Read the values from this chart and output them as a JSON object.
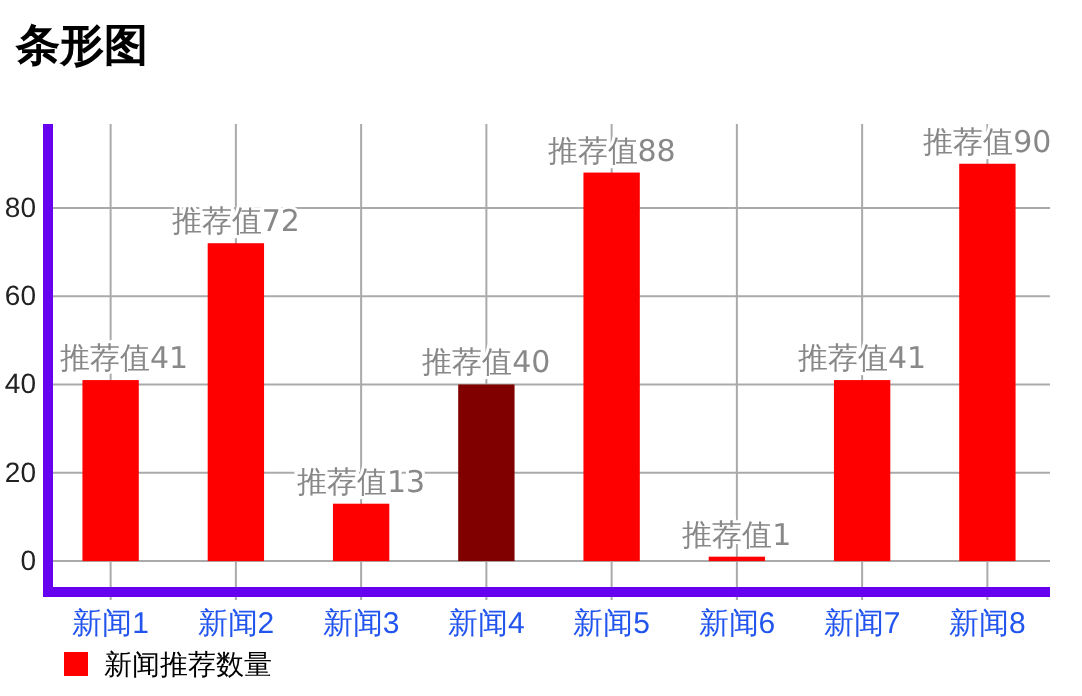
{
  "chart_data": {
    "type": "bar",
    "title": "条形图",
    "categories": [
      "新闻1",
      "新闻2",
      "新闻3",
      "新闻4",
      "新闻5",
      "新闻6",
      "新闻7",
      "新闻8"
    ],
    "series": [
      {
        "name": "新闻推荐数量",
        "color": "#ff0000",
        "colors": [
          "#ff0000",
          "#ff0000",
          "#ff0000",
          "#800000",
          "#ff0000",
          "#ff0000",
          "#ff0000",
          "#ff0000"
        ],
        "values": [
          41,
          72,
          13,
          40,
          88,
          1,
          41,
          90
        ],
        "value_labels": [
          "推荐值41",
          "推荐值72",
          "推荐值13",
          "推荐值40",
          "推荐值88",
          "推荐值1",
          "推荐值41",
          "推荐值90"
        ]
      }
    ],
    "ylim": [
      -7,
      99
    ],
    "yticks": [
      0,
      20,
      40,
      60,
      80
    ],
    "grid": true,
    "legend": "bottom left"
  }
}
